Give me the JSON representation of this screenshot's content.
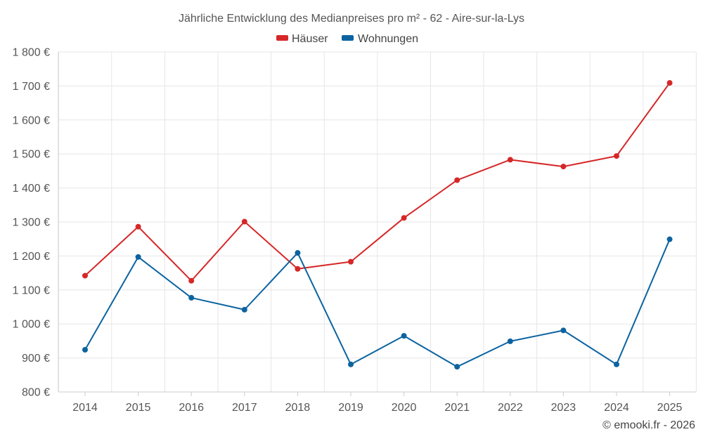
{
  "chart_data": {
    "type": "line",
    "title": "Jährliche Entwicklung des Medianpreises pro m² - 62 - Aire-sur-la-Lys",
    "categories": [
      "2014",
      "2015",
      "2016",
      "2017",
      "2018",
      "2019",
      "2020",
      "2021",
      "2022",
      "2023",
      "2024",
      "2025"
    ],
    "series": [
      {
        "name": "Häuser",
        "color": "#d62728",
        "values": [
          1142,
          1286,
          1127,
          1301,
          1162,
          1183,
          1312,
          1423,
          1483,
          1463,
          1494,
          1709
        ]
      },
      {
        "name": "Wohnungen",
        "color": "#0b63a0",
        "values": [
          924,
          1197,
          1077,
          1042,
          1209,
          881,
          965,
          874,
          949,
          981,
          881,
          1249
        ]
      }
    ],
    "ylim": [
      800,
      1800
    ],
    "yticks": [
      800,
      900,
      1000,
      1100,
      1200,
      1300,
      1400,
      1500,
      1600,
      1700,
      1800
    ],
    "ytick_labels": [
      "800 €",
      "900 €",
      "1 000 €",
      "1 100 €",
      "1 200 €",
      "1 300 €",
      "1 400 €",
      "1 500 €",
      "1 600 €",
      "1 700 €",
      "1 800 €"
    ],
    "xlabel": "",
    "ylabel": "",
    "grid": true,
    "legend_position": "top-center"
  },
  "credit": "© emooki.fr - 2026"
}
